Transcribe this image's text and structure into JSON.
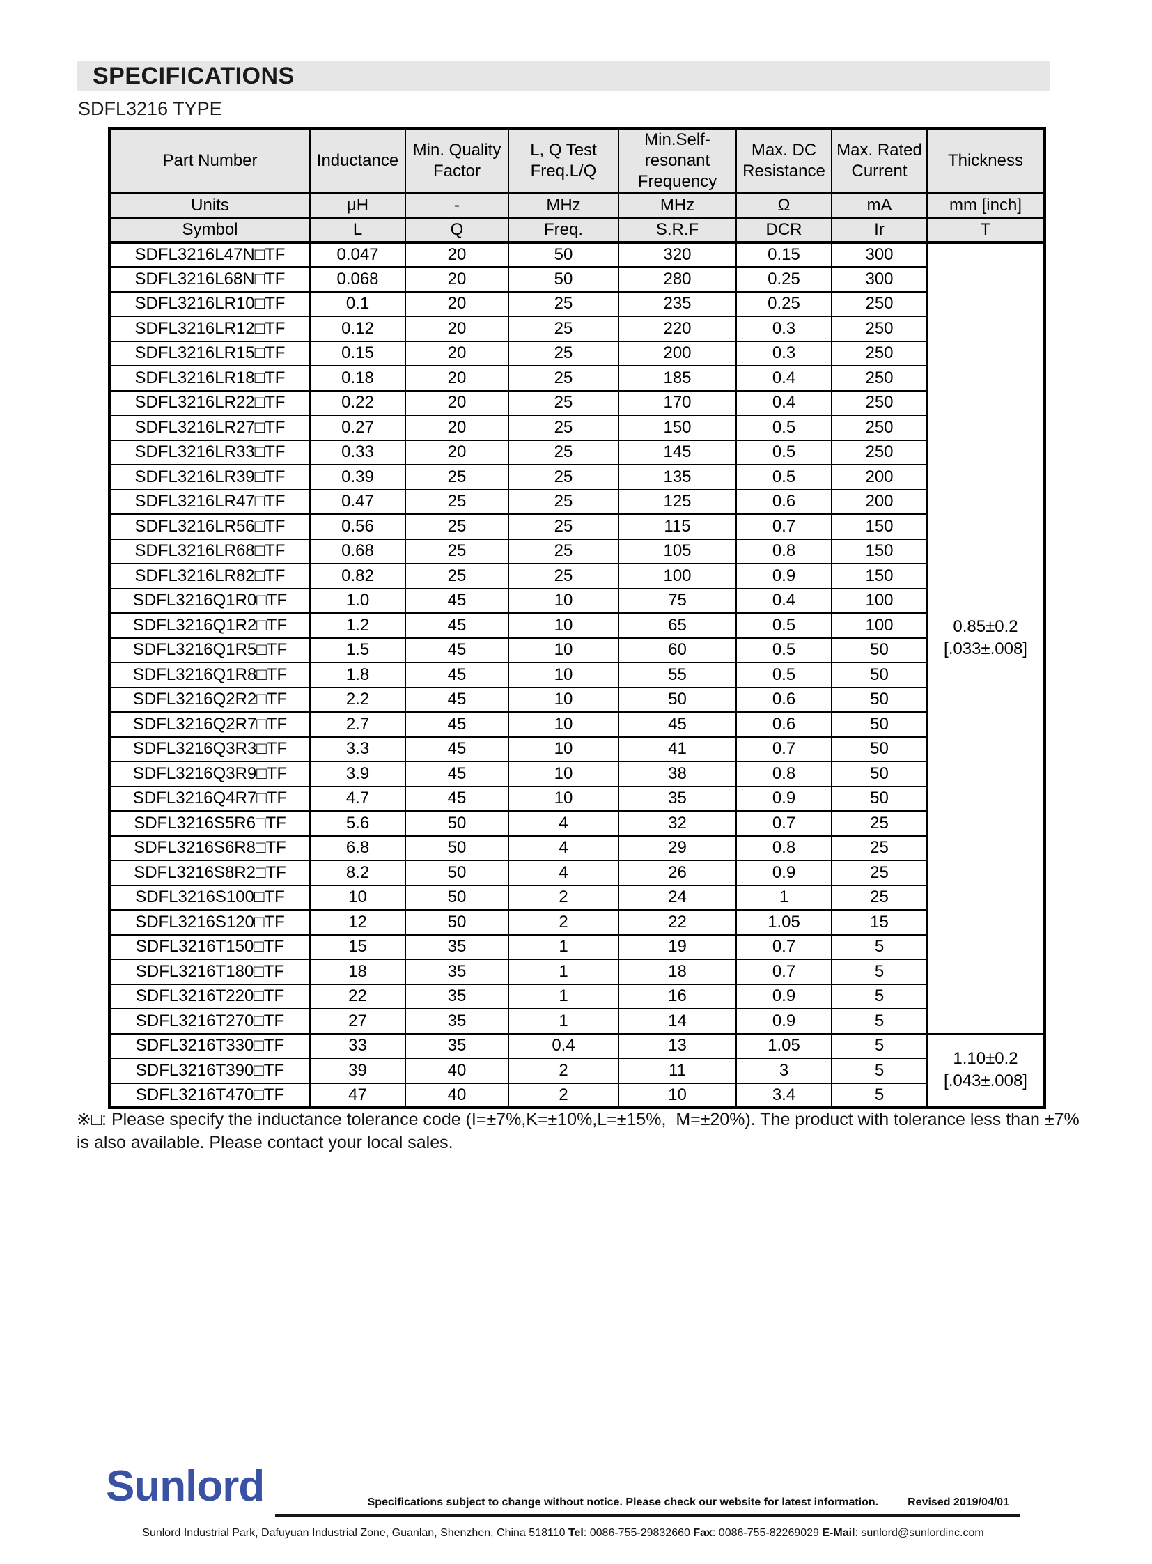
{
  "page": {
    "banner_title": "SPECIFICATIONS",
    "type_title": "SDFL3216 TYPE"
  },
  "table": {
    "headers": [
      "Part Number",
      "Inductance",
      "Min. Quality\nFactor",
      "L, Q Test\nFreq.L/Q",
      "Min.Self-resonant\nFrequency",
      "Max. DC\nResistance",
      "Max. Rated\nCurrent",
      "Thickness"
    ],
    "units_row": [
      "Units",
      "μH",
      "-",
      "MHz",
      "MHz",
      "Ω",
      "mA",
      "mm [inch]"
    ],
    "symbol_row": [
      "Symbol",
      "L",
      "Q",
      "Freq.",
      "S.R.F",
      "DCR",
      "Ir",
      "T"
    ],
    "rows": [
      {
        "part": "SDFL3216L47N□TF",
        "inductance": "0.047",
        "q": "20",
        "freq": "50",
        "srf": "320",
        "dcr": "0.15",
        "ir": "300"
      },
      {
        "part": "SDFL3216L68N□TF",
        "inductance": "0.068",
        "q": "20",
        "freq": "50",
        "srf": "280",
        "dcr": "0.25",
        "ir": "300"
      },
      {
        "part": "SDFL3216LR10□TF",
        "inductance": "0.1",
        "q": "20",
        "freq": "25",
        "srf": "235",
        "dcr": "0.25",
        "ir": "250"
      },
      {
        "part": "SDFL3216LR12□TF",
        "inductance": "0.12",
        "q": "20",
        "freq": "25",
        "srf": "220",
        "dcr": "0.3",
        "ir": "250"
      },
      {
        "part": "SDFL3216LR15□TF",
        "inductance": "0.15",
        "q": "20",
        "freq": "25",
        "srf": "200",
        "dcr": "0.3",
        "ir": "250"
      },
      {
        "part": "SDFL3216LR18□TF",
        "inductance": "0.18",
        "q": "20",
        "freq": "25",
        "srf": "185",
        "dcr": "0.4",
        "ir": "250"
      },
      {
        "part": "SDFL3216LR22□TF",
        "inductance": "0.22",
        "q": "20",
        "freq": "25",
        "srf": "170",
        "dcr": "0.4",
        "ir": "250"
      },
      {
        "part": "SDFL3216LR27□TF",
        "inductance": "0.27",
        "q": "20",
        "freq": "25",
        "srf": "150",
        "dcr": "0.5",
        "ir": "250"
      },
      {
        "part": "SDFL3216LR33□TF",
        "inductance": "0.33",
        "q": "20",
        "freq": "25",
        "srf": "145",
        "dcr": "0.5",
        "ir": "250"
      },
      {
        "part": "SDFL3216LR39□TF",
        "inductance": "0.39",
        "q": "25",
        "freq": "25",
        "srf": "135",
        "dcr": "0.5",
        "ir": "200"
      },
      {
        "part": "SDFL3216LR47□TF",
        "inductance": "0.47",
        "q": "25",
        "freq": "25",
        "srf": "125",
        "dcr": "0.6",
        "ir": "200"
      },
      {
        "part": "SDFL3216LR56□TF",
        "inductance": "0.56",
        "q": "25",
        "freq": "25",
        "srf": "115",
        "dcr": "0.7",
        "ir": "150"
      },
      {
        "part": "SDFL3216LR68□TF",
        "inductance": "0.68",
        "q": "25",
        "freq": "25",
        "srf": "105",
        "dcr": "0.8",
        "ir": "150"
      },
      {
        "part": "SDFL3216LR82□TF",
        "inductance": "0.82",
        "q": "25",
        "freq": "25",
        "srf": "100",
        "dcr": "0.9",
        "ir": "150"
      },
      {
        "part": "SDFL3216Q1R0□TF",
        "inductance": "1.0",
        "q": "45",
        "freq": "10",
        "srf": "75",
        "dcr": "0.4",
        "ir": "100"
      },
      {
        "part": "SDFL3216Q1R2□TF",
        "inductance": "1.2",
        "q": "45",
        "freq": "10",
        "srf": "65",
        "dcr": "0.5",
        "ir": "100"
      },
      {
        "part": "SDFL3216Q1R5□TF",
        "inductance": "1.5",
        "q": "45",
        "freq": "10",
        "srf": "60",
        "dcr": "0.5",
        "ir": "50"
      },
      {
        "part": "SDFL3216Q1R8□TF",
        "inductance": "1.8",
        "q": "45",
        "freq": "10",
        "srf": "55",
        "dcr": "0.5",
        "ir": "50"
      },
      {
        "part": "SDFL3216Q2R2□TF",
        "inductance": "2.2",
        "q": "45",
        "freq": "10",
        "srf": "50",
        "dcr": "0.6",
        "ir": "50"
      },
      {
        "part": "SDFL3216Q2R7□TF",
        "inductance": "2.7",
        "q": "45",
        "freq": "10",
        "srf": "45",
        "dcr": "0.6",
        "ir": "50"
      },
      {
        "part": "SDFL3216Q3R3□TF",
        "inductance": "3.3",
        "q": "45",
        "freq": "10",
        "srf": "41",
        "dcr": "0.7",
        "ir": "50"
      },
      {
        "part": "SDFL3216Q3R9□TF",
        "inductance": "3.9",
        "q": "45",
        "freq": "10",
        "srf": "38",
        "dcr": "0.8",
        "ir": "50"
      },
      {
        "part": "SDFL3216Q4R7□TF",
        "inductance": "4.7",
        "q": "45",
        "freq": "10",
        "srf": "35",
        "dcr": "0.9",
        "ir": "50"
      },
      {
        "part": "SDFL3216S5R6□TF",
        "inductance": "5.6",
        "q": "50",
        "freq": "4",
        "srf": "32",
        "dcr": "0.7",
        "ir": "25"
      },
      {
        "part": "SDFL3216S6R8□TF",
        "inductance": "6.8",
        "q": "50",
        "freq": "4",
        "srf": "29",
        "dcr": "0.8",
        "ir": "25"
      },
      {
        "part": "SDFL3216S8R2□TF",
        "inductance": "8.2",
        "q": "50",
        "freq": "4",
        "srf": "26",
        "dcr": "0.9",
        "ir": "25"
      },
      {
        "part": "SDFL3216S100□TF",
        "inductance": "10",
        "q": "50",
        "freq": "2",
        "srf": "24",
        "dcr": "1",
        "ir": "25"
      },
      {
        "part": "SDFL3216S120□TF",
        "inductance": "12",
        "q": "50",
        "freq": "2",
        "srf": "22",
        "dcr": "1.05",
        "ir": "15"
      },
      {
        "part": "SDFL3216T150□TF",
        "inductance": "15",
        "q": "35",
        "freq": "1",
        "srf": "19",
        "dcr": "0.7",
        "ir": "5"
      },
      {
        "part": "SDFL3216T180□TF",
        "inductance": "18",
        "q": "35",
        "freq": "1",
        "srf": "18",
        "dcr": "0.7",
        "ir": "5"
      },
      {
        "part": "SDFL3216T220□TF",
        "inductance": "22",
        "q": "35",
        "freq": "1",
        "srf": "16",
        "dcr": "0.9",
        "ir": "5"
      },
      {
        "part": "SDFL3216T270□TF",
        "inductance": "27",
        "q": "35",
        "freq": "1",
        "srf": "14",
        "dcr": "0.9",
        "ir": "5"
      },
      {
        "part": "SDFL3216T330□TF",
        "inductance": "33",
        "q": "35",
        "freq": "0.4",
        "srf": "13",
        "dcr": "1.05",
        "ir": "5"
      },
      {
        "part": "SDFL3216T390□TF",
        "inductance": "39",
        "q": "40",
        "freq": "2",
        "srf": "11",
        "dcr": "3",
        "ir": "5"
      },
      {
        "part": "SDFL3216T470□TF",
        "inductance": "47",
        "q": "40",
        "freq": "2",
        "srf": "10",
        "dcr": "3.4",
        "ir": "5"
      }
    ],
    "thickness_groups": [
      {
        "mm": "0.85±0.2",
        "inch": "[.033±.008]",
        "rows": 32
      },
      {
        "mm": "1.10±0.2",
        "inch": "[.043±.008]",
        "rows": 3
      }
    ]
  },
  "note": {
    "text": "※□: Please specify the inductance tolerance code (I=±7%,K=±10%,L=±15%,  M=±20%). The product with tolerance less than ±7% is also available. Please contact your local sales."
  },
  "footer": {
    "logo_text": "Sunlord",
    "notice": "Specifications subject to change without notice. Please check our website for latest information.",
    "revised": "Revised 2019/04/01",
    "address": "Sunlord Industrial Park, Dafuyuan Industrial Zone, Guanlan, Shenzhen, China 518110 ",
    "tel_label": "Tel",
    "tel_value": ": 0086-755-29832660 ",
    "fax_label": "Fax",
    "fax_value": ": 0086-755-82269029 ",
    "email_label": "E-Mail",
    "email_value": ": sunlord@sunlordinc.com"
  }
}
